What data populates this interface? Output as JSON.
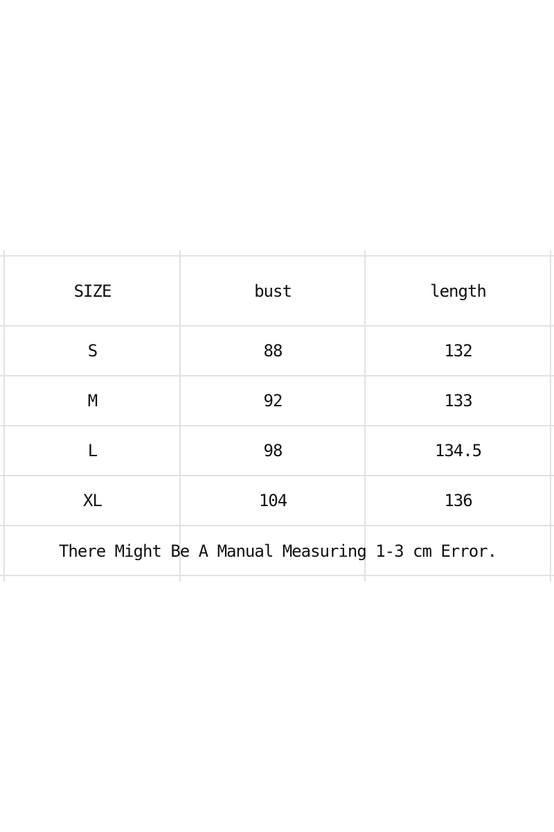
{
  "table": {
    "headers": [
      "SIZE",
      "bust",
      "length"
    ],
    "rows": [
      [
        "S",
        "88",
        "132"
      ],
      [
        "M",
        "92",
        "133"
      ],
      [
        "L",
        "98",
        "134.5"
      ],
      [
        "XL",
        "104",
        "136"
      ]
    ],
    "note": "There Might Be A Manual Measuring 1-3 cm Error."
  }
}
